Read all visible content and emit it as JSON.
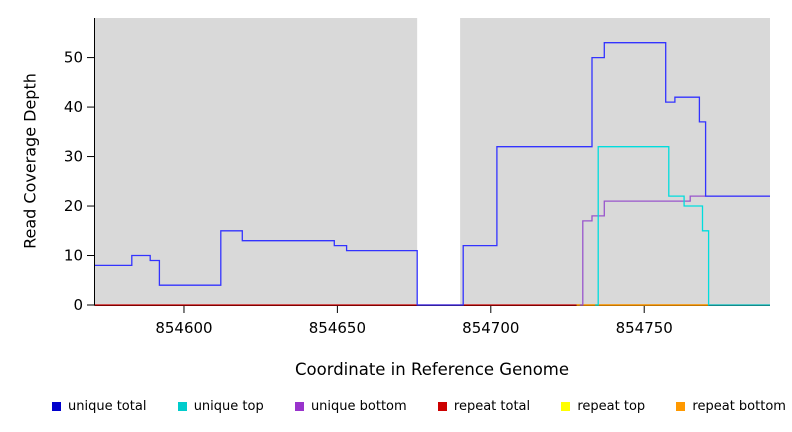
{
  "chart_data": {
    "type": "line",
    "subtype": "step",
    "title": "",
    "xlabel": "Coordinate in Reference Genome",
    "ylabel": "Read Coverage Depth",
    "xlim": [
      854571,
      854791
    ],
    "ylim": [
      0,
      58
    ],
    "x_ticks": [
      854600,
      854650,
      854700,
      854750
    ],
    "y_ticks": [
      0,
      10,
      20,
      30,
      40,
      50
    ],
    "grid": false,
    "plot_bg": "#d9d9d9",
    "gap_region": {
      "from": 854676,
      "to": 854690
    },
    "legend_position": "bottom",
    "legend": [
      {
        "label": "unique total",
        "color": "#0000cc"
      },
      {
        "label": "unique top",
        "color": "#00cccc"
      },
      {
        "label": "unique bottom",
        "color": "#9933cc"
      },
      {
        "label": "repeat total",
        "color": "#cc0000"
      },
      {
        "label": "repeat top",
        "color": "#ffff00"
      },
      {
        "label": "repeat bottom",
        "color": "#ff9900"
      }
    ],
    "series": [
      {
        "name": "repeat total",
        "color": "#cc0000",
        "points": [
          [
            854571,
            0
          ],
          [
            854791,
            0
          ]
        ]
      },
      {
        "name": "repeat top",
        "color": "#eeee00",
        "points": [
          [
            854728,
            0
          ],
          [
            854771,
            0
          ]
        ]
      },
      {
        "name": "repeat bottom",
        "color": "#ff9900",
        "points": [
          [
            854728,
            0
          ],
          [
            854771,
            0
          ]
        ]
      },
      {
        "name": "unique bottom",
        "color": "#9955cc",
        "points": [
          [
            854729,
            0
          ],
          [
            854730,
            17
          ],
          [
            854733,
            18
          ],
          [
            854737,
            21
          ],
          [
            854765,
            22
          ],
          [
            854791,
            22
          ]
        ]
      },
      {
        "name": "unique top",
        "color": "#00dddd",
        "points": [
          [
            854734,
            0
          ],
          [
            854735,
            32
          ],
          [
            854758,
            22
          ],
          [
            854763,
            20
          ],
          [
            854769,
            15
          ],
          [
            854771,
            0
          ],
          [
            854791,
            0
          ]
        ]
      },
      {
        "name": "unique total",
        "color": "#3333ff",
        "points": [
          [
            854571,
            8
          ],
          [
            854583,
            10
          ],
          [
            854589,
            9
          ],
          [
            854592,
            4
          ],
          [
            854612,
            15
          ],
          [
            854619,
            13
          ],
          [
            854649,
            12
          ],
          [
            854653,
            11
          ],
          [
            854676,
            0
          ],
          [
            854691,
            12
          ],
          [
            854702,
            32
          ],
          [
            854733,
            50
          ],
          [
            854737,
            53
          ],
          [
            854757,
            41
          ],
          [
            854760,
            42
          ],
          [
            854768,
            37
          ],
          [
            854770,
            22
          ],
          [
            854791,
            22
          ]
        ]
      }
    ]
  }
}
